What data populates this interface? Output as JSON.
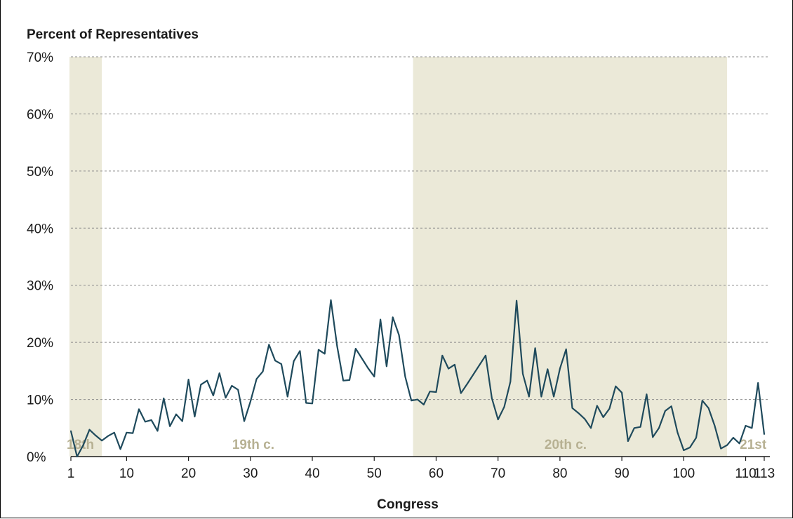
{
  "chart_data": {
    "type": "line",
    "ylabel": "Percent of Representatives",
    "xlabel": "Congress",
    "xlim": [
      1,
      113
    ],
    "ylim": [
      0,
      70
    ],
    "yticks": [
      0,
      10,
      20,
      30,
      40,
      50,
      60,
      70
    ],
    "ytick_labels": [
      "0%",
      "10%",
      "20%",
      "30%",
      "40%",
      "50%",
      "60%",
      "70%"
    ],
    "xticks": [
      1,
      10,
      20,
      30,
      40,
      50,
      60,
      70,
      80,
      90,
      100,
      110,
      113
    ],
    "xtick_labels": [
      "1",
      "10",
      "20",
      "30",
      "40",
      "50",
      "60",
      "70",
      "80",
      "90",
      "100",
      "110",
      "113"
    ],
    "grid": true,
    "line_color": "#1f4a5c",
    "shade_color": "#ebe9d8",
    "era_label_color": "#b7b193",
    "eras": [
      {
        "label": "18th",
        "start": 1,
        "end": 6,
        "shaded": true
      },
      {
        "label": "19th c.",
        "start": 6,
        "end": 56.5,
        "shaded": false
      },
      {
        "label": "20th c.",
        "start": 56.5,
        "end": 107,
        "shaded": true
      },
      {
        "label": "21st",
        "start": 107,
        "end": 113,
        "shaded": false
      }
    ],
    "series": [
      {
        "x": [
          1,
          2,
          3,
          4,
          5,
          6,
          7,
          8,
          9,
          10,
          11,
          12,
          13,
          14,
          15,
          16,
          17,
          18,
          19,
          20,
          21,
          22,
          23,
          24,
          25,
          26,
          27,
          28,
          29,
          30,
          31,
          32,
          33,
          34,
          35,
          36,
          37,
          38,
          39,
          40,
          41,
          42,
          43,
          44,
          45,
          46,
          47,
          48,
          49,
          50,
          51,
          52,
          53,
          54,
          55,
          56,
          57,
          58,
          59,
          60,
          61,
          62,
          63,
          64,
          65,
          68,
          69,
          70,
          71,
          72,
          73,
          74,
          75,
          76,
          77,
          78,
          79,
          80,
          81,
          82,
          83,
          84,
          85,
          86,
          87,
          88,
          89,
          90,
          91,
          92,
          93,
          94,
          95,
          96,
          97,
          98,
          99,
          100,
          101,
          102,
          103,
          104,
          105,
          106,
          107,
          108,
          109,
          110,
          111,
          112,
          113
        ],
        "values": [
          4.5,
          0,
          2,
          4.7,
          3.7,
          2.8,
          3.6,
          4.2,
          1.3,
          4.2,
          4.1,
          8.3,
          6.1,
          6.4,
          4.5,
          10.2,
          5.3,
          7.4,
          6.2,
          13.5,
          7.0,
          12.6,
          13.3,
          10.7,
          14.6,
          10.3,
          12.4,
          11.7,
          6.2,
          9.6,
          13.6,
          14.9,
          19.6,
          16.8,
          16.2,
          10.5,
          16.7,
          18.5,
          9.4,
          9.3,
          18.7,
          18.0,
          27.4,
          19.4,
          13.3,
          13.4,
          18.9,
          17.2,
          15.5,
          14.0,
          24.0,
          15.8,
          24.4,
          21.3,
          14.0,
          9.8,
          10.0,
          9.1,
          11.4,
          11.3,
          17.7,
          15.4,
          16.1,
          11.1,
          12.7,
          17.7,
          10.2,
          6.5,
          8.7,
          13.1,
          27.3,
          14.5,
          10.5,
          19.0,
          10.5,
          15.3,
          10.5,
          15.4,
          18.8,
          8.5,
          7.6,
          6.6,
          5.0,
          8.9,
          6.9,
          8.4,
          12.3,
          11.2,
          2.7,
          5.0,
          5.2,
          10.9,
          3.4,
          5.0,
          8.0,
          8.8,
          4.2,
          1.1,
          1.6,
          3.3,
          9.8,
          8.5,
          5.4,
          1.4,
          2.0,
          3.3,
          2.3,
          5.4,
          5.0,
          12.9,
          3.9
        ]
      }
    ]
  }
}
